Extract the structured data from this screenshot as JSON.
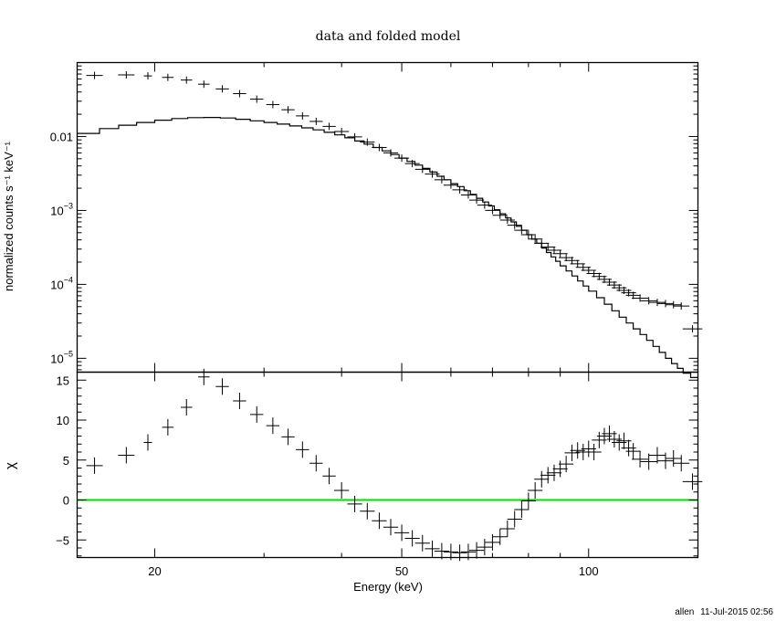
{
  "chart_data": [
    {
      "type": "scatter",
      "title": "data and folded model",
      "xlabel": "Energy (keV)",
      "ylabel": "normalized counts s⁻¹ keV⁻¹",
      "xscale": "log",
      "yscale": "log",
      "xlim": [
        15,
        150
      ],
      "ylim": [
        6.5e-06,
        0.1
      ],
      "y_ticks": [
        {
          "value": 0.01,
          "label": "0.01"
        },
        {
          "value": 0.001,
          "base": "10",
          "exp": "−3"
        },
        {
          "value": 0.0001,
          "base": "10",
          "exp": "−4"
        },
        {
          "value": 1e-05,
          "base": "10",
          "exp": "−5"
        }
      ],
      "grid": false,
      "series": [
        {
          "kind": "data",
          "points": [
            [
              16.0,
              0.067,
              1.0
            ],
            [
              18.0,
              0.068,
              1.0
            ],
            [
              19.5,
              0.066,
              0.5
            ],
            [
              21.0,
              0.063,
              0.7
            ],
            [
              22.5,
              0.058,
              0.7
            ],
            [
              24.0,
              0.051,
              0.7
            ],
            [
              25.7,
              0.044,
              0.8
            ],
            [
              27.4,
              0.038,
              0.8
            ],
            [
              29.2,
              0.032,
              0.8
            ],
            [
              31.0,
              0.027,
              0.8
            ],
            [
              32.8,
              0.023,
              0.8
            ],
            [
              34.6,
              0.019,
              0.8
            ],
            [
              36.4,
              0.016,
              0.8
            ],
            [
              38.2,
              0.0137,
              0.8
            ],
            [
              40.0,
              0.0117,
              0.9
            ],
            [
              42.0,
              0.0099,
              0.9
            ],
            [
              44.0,
              0.0084,
              0.9
            ],
            [
              46.0,
              0.0071,
              0.9
            ],
            [
              48.0,
              0.006,
              0.9
            ],
            [
              50.0,
              0.0051,
              0.9
            ],
            [
              52.0,
              0.0043,
              0.9
            ],
            [
              54.0,
              0.0036,
              0.9
            ],
            [
              56.0,
              0.0031,
              0.9
            ],
            [
              58.0,
              0.0026,
              0.9
            ],
            [
              60.0,
              0.0022,
              0.9
            ],
            [
              62.0,
              0.0019,
              0.9
            ],
            [
              64.0,
              0.00162,
              0.9
            ],
            [
              66.0,
              0.00138,
              0.9
            ],
            [
              68.0,
              0.00118,
              0.9
            ],
            [
              70.0,
              0.001,
              0.9
            ],
            [
              72.0,
              0.00086,
              0.9
            ],
            [
              74.0,
              0.00074,
              0.9
            ],
            [
              76.0,
              0.00063,
              0.9
            ],
            [
              78.0,
              0.00054,
              0.9
            ],
            [
              80.0,
              0.00047,
              0.9
            ],
            [
              82.0,
              0.00041,
              0.9
            ],
            [
              84.0,
              0.00036,
              0.9
            ],
            [
              86.0,
              0.00032,
              0.9
            ],
            [
              88.0,
              0.00029,
              0.9
            ],
            [
              90.0,
              0.00026,
              0.9
            ],
            [
              92.0,
              0.00023,
              0.9
            ],
            [
              94.0,
              0.00021,
              0.9
            ],
            [
              96.0,
              0.00019,
              0.9
            ],
            [
              98.0,
              0.00017,
              0.9
            ],
            [
              100.0,
              0.000155,
              0.9
            ],
            [
              102.0,
              0.00014,
              0.9
            ],
            [
              104.0,
              0.000128,
              0.9
            ],
            [
              106.0,
              0.000117,
              0.9
            ],
            [
              108.0,
              0.000107,
              0.9
            ],
            [
              110.0,
              9.8e-05,
              0.9
            ],
            [
              112.0,
              9e-05,
              0.9
            ],
            [
              114.0,
              8.3e-05,
              0.9
            ],
            [
              116.0,
              7.7e-05,
              0.9
            ],
            [
              118.0,
              7.1e-05,
              0.9
            ],
            [
              121.0,
              6.5e-05,
              1.0
            ],
            [
              125.0,
              6e-05,
              1.0
            ],
            [
              129.0,
              5.7e-05,
              1.0
            ],
            [
              133.0,
              5.5e-05,
              1.0
            ],
            [
              137.0,
              5.3e-05,
              1.0
            ],
            [
              141.0,
              5.1e-05,
              1.0
            ],
            [
              147.0,
              2.5e-05,
              1.2
            ]
          ]
        },
        {
          "kind": "folded-model",
          "steps": [
            [
              15.0,
              0.011
            ],
            [
              16.3,
              0.0128
            ],
            [
              17.5,
              0.0142
            ],
            [
              18.7,
              0.0155
            ],
            [
              20.0,
              0.0166
            ],
            [
              21.3,
              0.0175
            ],
            [
              22.6,
              0.018
            ],
            [
              24.0,
              0.0181
            ],
            [
              25.5,
              0.0178
            ],
            [
              27.0,
              0.0171
            ],
            [
              28.5,
              0.0163
            ],
            [
              30.0,
              0.0155
            ],
            [
              31.5,
              0.0147
            ],
            [
              33.0,
              0.0139
            ],
            [
              34.5,
              0.0131
            ],
            [
              36.0,
              0.0123
            ],
            [
              37.5,
              0.0114
            ],
            [
              39.0,
              0.0105
            ],
            [
              40.5,
              0.0096
            ],
            [
              42.0,
              0.0087
            ],
            [
              43.5,
              0.0079
            ],
            [
              45.0,
              0.0071
            ],
            [
              46.5,
              0.0064
            ],
            [
              48.0,
              0.0057
            ],
            [
              49.5,
              0.0051
            ],
            [
              51.0,
              0.0046
            ],
            [
              52.5,
              0.0041
            ],
            [
              54.0,
              0.0037
            ],
            [
              55.5,
              0.0033
            ],
            [
              57.0,
              0.0029
            ],
            [
              58.5,
              0.0026
            ],
            [
              60.0,
              0.0023
            ],
            [
              61.5,
              0.0021
            ],
            [
              63.0,
              0.00185
            ],
            [
              64.5,
              0.00165
            ],
            [
              66.0,
              0.00146
            ],
            [
              67.5,
              0.0013
            ],
            [
              69.0,
              0.00115
            ],
            [
              70.5,
              0.00102
            ],
            [
              72.0,
              0.0009
            ],
            [
              73.5,
              0.00079
            ],
            [
              75.0,
              0.0007
            ],
            [
              76.5,
              0.00061
            ],
            [
              78.0,
              0.00054
            ],
            [
              79.5,
              0.00047
            ],
            [
              81.0,
              0.00041
            ],
            [
              82.5,
              0.00036
            ],
            [
              84.0,
              0.00031
            ],
            [
              85.5,
              0.00027
            ],
            [
              87.0,
              0.000235
            ],
            [
              88.5,
              0.000205
            ],
            [
              90.0,
              0.000178
            ],
            [
              92.0,
              0.000152
            ],
            [
              94.0,
              0.00013
            ],
            [
              96.0,
              0.000111
            ],
            [
              98.0,
              9.5e-05
            ],
            [
              100.0,
              8.1e-05
            ],
            [
              103.0,
              6.6e-05
            ],
            [
              106.0,
              5.4e-05
            ],
            [
              109.0,
              4.4e-05
            ],
            [
              112.0,
              3.6e-05
            ],
            [
              115.0,
              3e-05
            ],
            [
              118.0,
              2.5e-05
            ],
            [
              121.0,
              2.1e-05
            ],
            [
              124.0,
              1.75e-05
            ],
            [
              127.0,
              1.45e-05
            ],
            [
              130.0,
              1.2e-05
            ],
            [
              133.0,
              1e-05
            ],
            [
              136.0,
              8.5e-06
            ],
            [
              139.0,
              7.3e-06
            ],
            [
              142.0,
              6.3e-06
            ],
            [
              146.0,
              5.5e-06
            ],
            [
              150.0,
              5.5e-06
            ]
          ]
        }
      ]
    },
    {
      "type": "scatter",
      "xlabel": "Energy (keV)",
      "ylabel": "χ",
      "xscale": "log",
      "xlim": [
        15,
        150
      ],
      "ylim": [
        -7.2,
        16
      ],
      "x_ticks": [
        {
          "value": 20,
          "label": "20"
        },
        {
          "value": 50,
          "label": "50"
        },
        {
          "value": 100,
          "label": "100"
        }
      ],
      "y_ticks": [
        {
          "value": 15,
          "label": "15"
        },
        {
          "value": 10,
          "label": "10"
        },
        {
          "value": 5,
          "label": "5"
        },
        {
          "value": 0,
          "label": "0"
        },
        {
          "value": -5,
          "label": "−5"
        }
      ],
      "zero_line_color": "#00dd00",
      "grid": false,
      "series": [
        {
          "kind": "residuals",
          "points": [
            [
              16.0,
              4.3,
              1.0
            ],
            [
              18.0,
              5.6,
              1.0
            ],
            [
              19.5,
              7.2,
              0.5
            ],
            [
              21.0,
              9.1,
              0.7
            ],
            [
              22.5,
              11.6,
              0.7
            ],
            [
              24.0,
              15.4,
              0.7
            ],
            [
              25.7,
              14.2,
              0.8
            ],
            [
              27.4,
              12.4,
              0.8
            ],
            [
              29.2,
              10.7,
              0.8
            ],
            [
              31.0,
              9.3,
              0.8
            ],
            [
              32.8,
              7.9,
              0.8
            ],
            [
              34.6,
              6.3,
              0.8
            ],
            [
              36.4,
              4.6,
              0.8
            ],
            [
              38.2,
              3.0,
              0.8
            ],
            [
              40.0,
              1.2,
              0.9
            ],
            [
              42.0,
              -0.5,
              0.9
            ],
            [
              44.0,
              -1.4,
              0.9
            ],
            [
              46.0,
              -2.6,
              0.9
            ],
            [
              48.0,
              -3.4,
              0.9
            ],
            [
              50.0,
              -4.1,
              0.9
            ],
            [
              52.0,
              -4.8,
              0.9
            ],
            [
              54.0,
              -5.4,
              0.9
            ],
            [
              56.0,
              -6.1,
              0.9
            ],
            [
              58.0,
              -6.4,
              0.9
            ],
            [
              60.0,
              -6.5,
              0.9
            ],
            [
              62.0,
              -6.6,
              0.9
            ],
            [
              64.0,
              -6.5,
              0.9
            ],
            [
              66.0,
              -6.3,
              0.9
            ],
            [
              68.0,
              -5.9,
              0.9
            ],
            [
              70.0,
              -5.3,
              0.9
            ],
            [
              72.0,
              -4.6,
              0.9
            ],
            [
              74.0,
              -3.6,
              0.9
            ],
            [
              76.0,
              -2.4,
              0.9
            ],
            [
              78.0,
              -1.2,
              0.9
            ],
            [
              80.0,
              -0.1,
              0.9
            ],
            [
              82.0,
              1.2,
              0.9
            ],
            [
              84.0,
              2.6,
              0.9
            ],
            [
              86.0,
              3.1,
              0.9
            ],
            [
              88.0,
              3.4,
              0.9
            ],
            [
              90.0,
              3.9,
              0.9
            ],
            [
              92.0,
              4.5,
              0.9
            ],
            [
              94.0,
              5.9,
              0.9
            ],
            [
              96.0,
              6.2,
              0.9
            ],
            [
              98.0,
              6.0,
              0.9
            ],
            [
              100.0,
              6.4,
              0.9
            ],
            [
              102.0,
              6.0,
              0.9
            ],
            [
              104.0,
              7.5,
              0.9
            ],
            [
              106.0,
              8.0,
              0.9
            ],
            [
              108.0,
              8.3,
              0.9
            ],
            [
              110.0,
              7.6,
              0.9
            ],
            [
              112.0,
              7.2,
              0.9
            ],
            [
              114.0,
              7.4,
              0.9
            ],
            [
              116.0,
              6.5,
              0.9
            ],
            [
              118.0,
              6.1,
              0.9
            ],
            [
              121.0,
              5.1,
              1.0
            ],
            [
              125.0,
              4.8,
              1.0
            ],
            [
              129.0,
              5.6,
              1.0
            ],
            [
              133.0,
              4.9,
              1.0
            ],
            [
              137.0,
              5.2,
              1.0
            ],
            [
              141.0,
              4.6,
              1.0
            ],
            [
              147.0,
              2.3,
              1.2
            ]
          ]
        }
      ]
    }
  ],
  "footer": {
    "user": "allen",
    "date": "11-Jul-2015 02:56"
  },
  "colors": {
    "axes": "#000000",
    "data": "#000000",
    "model": "#000000",
    "zero_line": "#00dd00"
  }
}
